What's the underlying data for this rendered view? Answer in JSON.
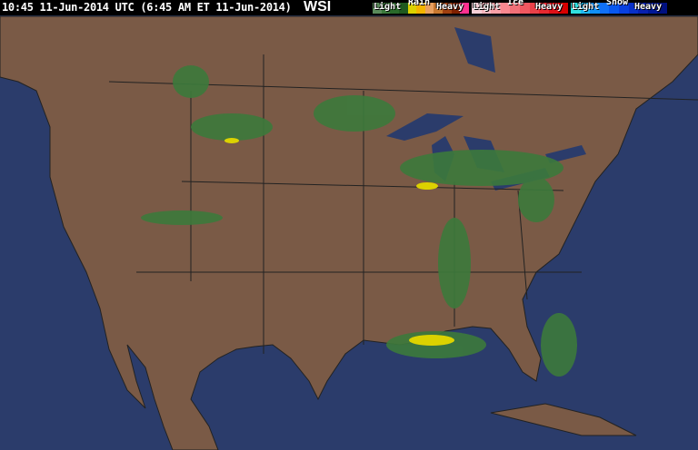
{
  "header": {
    "timestamp": "10:45 11-Jun-2014 UTC (6:45 AM ET 11-Jun-2014)",
    "logo": "WSI"
  },
  "legend": [
    {
      "type": "Rain",
      "light": "Light",
      "heavy": "Heavy",
      "colors": [
        "#5a8a5a",
        "#3c7a3c",
        "#2a6a2a",
        "#1f5a1f",
        "#dcd200",
        "#f2b400",
        "#e8a060",
        "#c87830",
        "#a04010",
        "#802000",
        "#ff3090"
      ]
    },
    {
      "type": "Ice",
      "light": "Light",
      "heavy": "Heavy",
      "colors": [
        "#f8d0d8",
        "#f8b8c0",
        "#f8a0a8",
        "#f88890",
        "#f07078",
        "#f05860",
        "#e84048",
        "#e82830",
        "#e01018",
        "#d80000"
      ]
    },
    {
      "type": "Snow",
      "light": "Light",
      "heavy": "Heavy",
      "colors": [
        "#30e0e0",
        "#20b8f0",
        "#1090f8",
        "#1070f8",
        "#0858f0",
        "#0840e0",
        "#0830c8",
        "#0820b0",
        "#001898",
        "#001080"
      ]
    }
  ],
  "colors": {
    "ocean": "#2b3c6b",
    "land": "#7a5a46",
    "borders": "#222222",
    "radar_light": "#3c7a3c",
    "radar_moderate": "#dcd200"
  }
}
